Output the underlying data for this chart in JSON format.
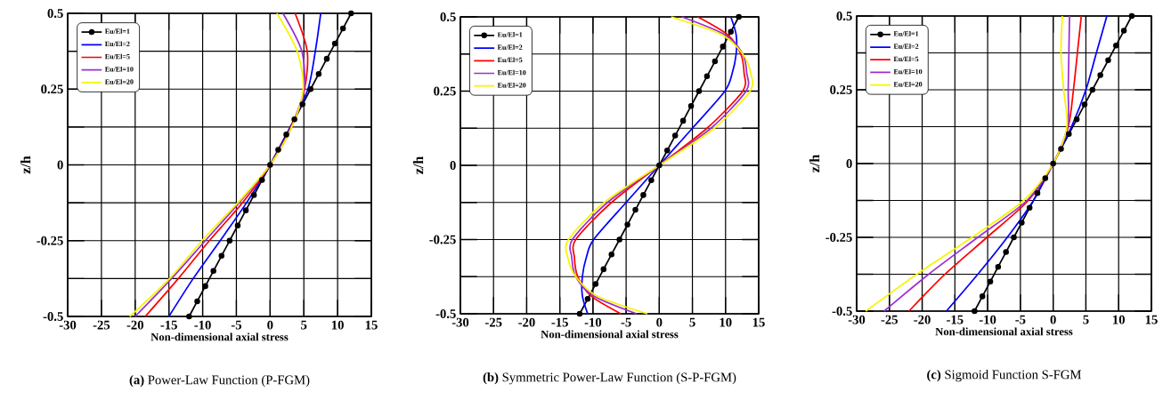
{
  "chart_data": [
    {
      "type": "line",
      "title": "**(a)** Power-Law Function  (P-FGM)",
      "xlabel": "Non-dimensional axial stress",
      "ylabel": "z/h",
      "xlim": [
        -30,
        15
      ],
      "ylim": [
        -0.5,
        0.5
      ],
      "xticks": [
        -30,
        -25,
        -20,
        -15,
        -10,
        -5,
        0,
        5,
        10,
        15
      ],
      "yticks": [
        -0.5,
        {
          "value": -0.375,
          "label": null
        },
        -0.25,
        {
          "value": -0.125,
          "label": null
        },
        0,
        {
          "value": 0.125,
          "label": null
        },
        0.25,
        {
          "value": 0.375,
          "label": null
        },
        0.5
      ],
      "grid": true,
      "legend": "top left",
      "series": [
        {
          "name": "Eu/El=1",
          "color": "#000000",
          "marker": "circle",
          "x": [
            -12,
            -10.8,
            -9.6,
            -8.4,
            -7.2,
            -6,
            -4.8,
            -3.6,
            -2.4,
            -1.2,
            0,
            1.2,
            2.4,
            3.6,
            4.8,
            6,
            7.2,
            8.4,
            9.6,
            10.8,
            12
          ],
          "values": [
            -0.5,
            -0.45,
            -0.4,
            -0.35,
            -0.3,
            -0.25,
            -0.2,
            -0.15,
            -0.1,
            -0.05,
            0,
            0.05,
            0.1,
            0.15,
            0.2,
            0.25,
            0.3,
            0.35,
            0.4,
            0.45,
            0.5
          ]
        },
        {
          "name": "Eu/El=2",
          "color": "#0000ff",
          "x": [
            -15.0,
            -11.4,
            -7.4,
            -3.5,
            0,
            3.0,
            5.6,
            6.7,
            7.5
          ],
          "values": [
            -0.5,
            -0.375,
            -0.25,
            -0.125,
            0,
            0.125,
            0.25,
            0.375,
            0.5
          ]
        },
        {
          "name": "Eu/El=5",
          "color": "#ff0000",
          "x": [
            -18.5,
            -13.6,
            -9.0,
            -4.1,
            0,
            3.1,
            5.1,
            5.5,
            3.7
          ],
          "values": [
            -0.5,
            -0.375,
            -0.25,
            -0.125,
            0,
            0.125,
            0.25,
            0.375,
            0.5
          ]
        },
        {
          "name": "Eu/El=10",
          "color": "#9b30d0",
          "x": [
            -20.0,
            -14.6,
            -9.6,
            -4.6,
            0,
            3.2,
            5.0,
            4.7,
            1.9
          ],
          "values": [
            -0.5,
            -0.375,
            -0.25,
            -0.125,
            0,
            0.125,
            0.25,
            0.375,
            0.5
          ]
        },
        {
          "name": "Eu/El=20",
          "color": "#f5f500",
          "x": [
            -20.8,
            -14.9,
            -10.1,
            -4.8,
            0,
            3.2,
            4.9,
            4.0,
            1.0
          ],
          "values": [
            -0.5,
            -0.375,
            -0.25,
            -0.125,
            0,
            0.125,
            0.25,
            0.375,
            0.5
          ]
        }
      ]
    },
    {
      "type": "line",
      "title": "**(b)** Symmetric Power-Law Function (S-P-FGM)",
      "xlabel": "Non-dimensional axial stress",
      "ylabel": "z/h",
      "xlim": [
        -30,
        15
      ],
      "ylim": [
        -0.5,
        0.5
      ],
      "xticks": [
        -30,
        -25,
        -20,
        -15,
        -10,
        -5,
        0,
        5,
        10,
        15
      ],
      "yticks": [
        -0.5,
        {
          "value": -0.375,
          "label": null
        },
        -0.25,
        {
          "value": -0.125,
          "label": null
        },
        0,
        {
          "value": 0.125,
          "label": null
        },
        0.25,
        {
          "value": 0.375,
          "label": null
        },
        0.5
      ],
      "grid": true,
      "legend": "top left",
      "series": [
        {
          "name": "Eu/El=1",
          "color": "#000000",
          "marker": "circle",
          "x": [
            -12,
            -10.8,
            -9.6,
            -8.4,
            -7.2,
            -6,
            -4.8,
            -3.6,
            -2.4,
            -1.2,
            0,
            1.2,
            2.4,
            3.6,
            4.8,
            6,
            7.2,
            8.4,
            9.6,
            10.8,
            12
          ],
          "values": [
            -0.5,
            -0.45,
            -0.4,
            -0.35,
            -0.3,
            -0.25,
            -0.2,
            -0.15,
            -0.1,
            -0.05,
            0,
            0.05,
            0.1,
            0.15,
            0.2,
            0.25,
            0.3,
            0.35,
            0.4,
            0.45,
            0.5
          ]
        },
        {
          "name": "Eu/El=2",
          "color": "#0000ff",
          "x": [
            -10.8,
            -11.6,
            -11.6,
            -11.0,
            -9.9,
            -5.0,
            0,
            5.0,
            9.9,
            11.0,
            11.6,
            11.6,
            10.8
          ],
          "values": [
            -0.5,
            -0.44,
            -0.375,
            -0.31,
            -0.25,
            -0.125,
            0,
            0.125,
            0.25,
            0.31,
            0.375,
            0.44,
            0.5
          ]
        },
        {
          "name": "Eu/El=5",
          "color": "#ff0000",
          "x": [
            -5.8,
            -10.3,
            -12.3,
            -12.8,
            -12.6,
            -7.2,
            0,
            7.2,
            12.6,
            12.8,
            12.3,
            10.3,
            5.8
          ],
          "values": [
            -0.5,
            -0.44,
            -0.375,
            -0.31,
            -0.25,
            -0.125,
            0,
            0.125,
            0.25,
            0.31,
            0.375,
            0.44,
            0.5
          ]
        },
        {
          "name": "Eu/El=10",
          "color": "#9b30d0",
          "x": [
            -3.4,
            -9.9,
            -12.6,
            -13.2,
            -13.1,
            -7.8,
            0,
            7.8,
            13.1,
            13.2,
            12.6,
            9.9,
            3.4
          ],
          "values": [
            -0.5,
            -0.44,
            -0.375,
            -0.31,
            -0.25,
            -0.125,
            0,
            0.125,
            0.25,
            0.31,
            0.375,
            0.44,
            0.5
          ]
        },
        {
          "name": "Eu/El=20",
          "color": "#f5f500",
          "x": [
            -1.8,
            -9.4,
            -12.6,
            -13.8,
            -13.7,
            -8.3,
            0,
            8.3,
            13.7,
            13.8,
            12.6,
            9.4,
            1.8
          ],
          "values": [
            -0.5,
            -0.44,
            -0.375,
            -0.31,
            -0.25,
            -0.125,
            0,
            0.125,
            0.25,
            0.31,
            0.375,
            0.44,
            0.5
          ]
        }
      ]
    },
    {
      "type": "line",
      "title": "**(c)** Sigmoid Function S-FGM",
      "xlabel": "Non-dimensional axial stress",
      "ylabel": "z/h",
      "xlim": [
        -30,
        15
      ],
      "ylim": [
        -0.5,
        0.5
      ],
      "xticks": [
        -30,
        -25,
        -20,
        -15,
        -10,
        -5,
        0,
        5,
        10,
        15
      ],
      "yticks": [
        -0.5,
        {
          "value": -0.375,
          "label": null
        },
        -0.25,
        {
          "value": -0.125,
          "label": null
        },
        0,
        {
          "value": 0.125,
          "label": null
        },
        0.25,
        {
          "value": 0.375,
          "label": null
        },
        0.5
      ],
      "grid": true,
      "legend": "top left",
      "series": [
        {
          "name": "Eu/El=1",
          "color": "#000000",
          "marker": "circle",
          "x": [
            -12,
            -10.8,
            -9.6,
            -8.4,
            -7.2,
            -6,
            -4.8,
            -3.6,
            -2.4,
            -1.2,
            0,
            1.2,
            2.4,
            3.6,
            4.8,
            6,
            7.2,
            8.4,
            9.6,
            10.8,
            12
          ],
          "values": [
            -0.5,
            -0.45,
            -0.4,
            -0.35,
            -0.3,
            -0.25,
            -0.2,
            -0.15,
            -0.1,
            -0.05,
            0,
            0.05,
            0.1,
            0.15,
            0.2,
            0.25,
            0.3,
            0.35,
            0.4,
            0.45,
            0.5
          ]
        },
        {
          "name": "Eu/El=2",
          "color": "#0000ff",
          "x": [
            -16.3,
            -11.5,
            -7.0,
            -3.0,
            0,
            2.8,
            5.0,
            6.6,
            8.2
          ],
          "values": [
            -0.5,
            -0.375,
            -0.25,
            -0.125,
            0,
            0.125,
            0.25,
            0.375,
            0.5
          ]
        },
        {
          "name": "Eu/El=5",
          "color": "#ff0000",
          "x": [
            -22.0,
            -16.5,
            -10.1,
            -3.8,
            0,
            2.3,
            3.1,
            3.7,
            4.3
          ],
          "values": [
            -0.5,
            -0.375,
            -0.25,
            -0.125,
            0,
            0.125,
            0.25,
            0.375,
            0.5
          ]
        },
        {
          "name": "Eu/El=10",
          "color": "#9b30d0",
          "x": [
            -25.8,
            -19.0,
            -11.5,
            -4.0,
            0,
            2.2,
            2.3,
            2.4,
            2.5
          ],
          "values": [
            -0.5,
            -0.375,
            -0.25,
            -0.125,
            0,
            0.125,
            0.25,
            0.375,
            0.5
          ]
        },
        {
          "name": "Eu/El=20",
          "color": "#f5f500",
          "x": [
            -28.6,
            -20.8,
            -12.4,
            -4.5,
            0,
            2.1,
            1.6,
            1.2,
            1.4
          ],
          "values": [
            -0.5,
            -0.375,
            -0.25,
            -0.125,
            0,
            0.125,
            0.25,
            0.375,
            0.5
          ]
        }
      ]
    }
  ]
}
